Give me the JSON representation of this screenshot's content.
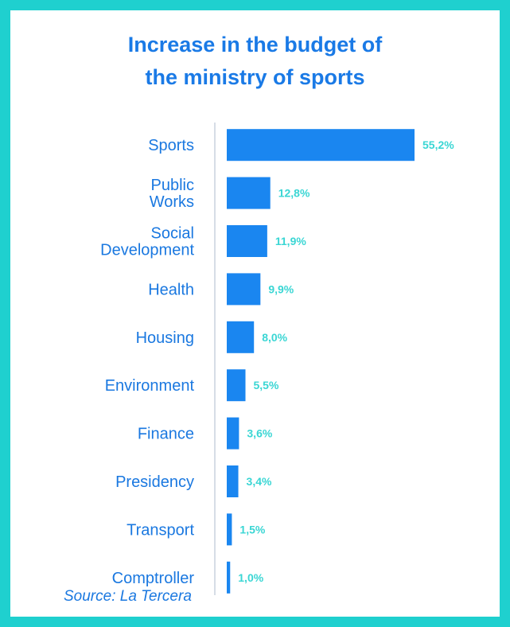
{
  "chart_data": {
    "type": "bar",
    "orientation": "horizontal",
    "title": [
      "Increase in the budget of",
      "the ministry of sports"
    ],
    "categories": [
      "Sports",
      "Public Works",
      "Social Development",
      "Health",
      "Housing",
      "Environment",
      "Finance",
      "Presidency",
      "Transport",
      "Comptroller"
    ],
    "category_lines": [
      [
        "Sports"
      ],
      [
        "Public",
        "Works"
      ],
      [
        "Social",
        "Development"
      ],
      [
        "Health"
      ],
      [
        "Housing"
      ],
      [
        "Environment"
      ],
      [
        "Finance"
      ],
      [
        "Presidency"
      ],
      [
        "Transport"
      ],
      [
        "Comptroller"
      ]
    ],
    "values": [
      55.2,
      12.8,
      11.9,
      9.9,
      8.0,
      5.5,
      3.6,
      3.4,
      1.5,
      1.0
    ],
    "value_labels": [
      "55,2%",
      "12,8%",
      "11,9%",
      "9,9%",
      "8,0%",
      "5,5%",
      "3,6%",
      "3,4%",
      "1,5%",
      "1,0%"
    ],
    "grid": false,
    "legend": "none",
    "colors": {
      "bar": "#1a86f0",
      "title": "#1a7ae6",
      "category_text": "#1a78e0",
      "value_text": "#3ad6d4",
      "frame": "#1fd0cf"
    }
  },
  "source": "Source: La Tercera"
}
